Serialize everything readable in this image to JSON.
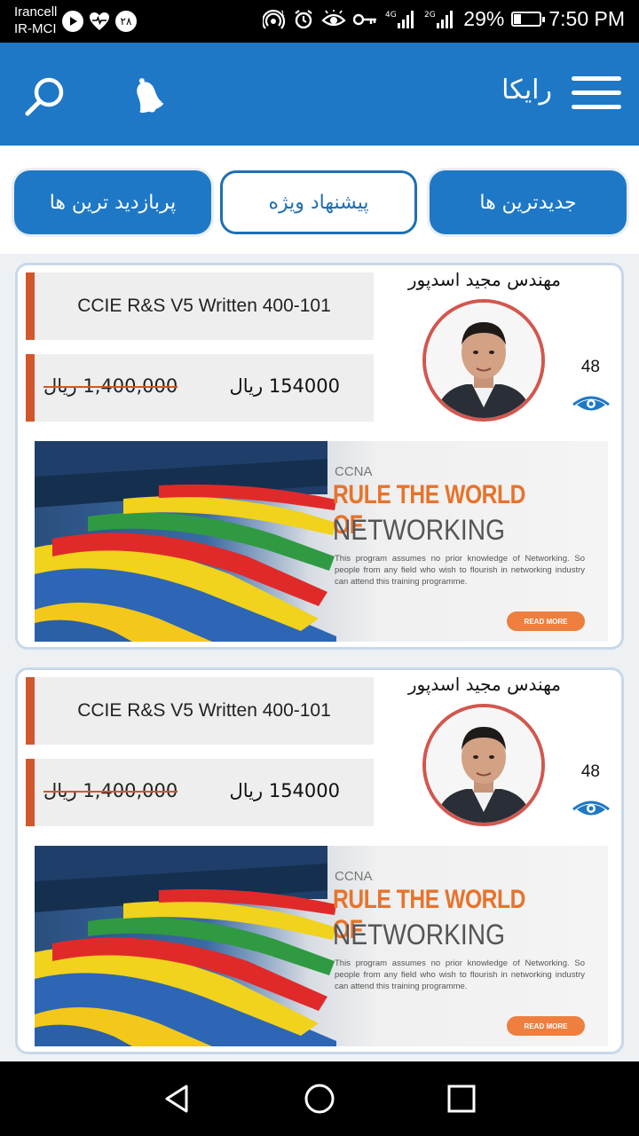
{
  "status_bar": {
    "carrier_line1": "Irancell",
    "carrier_line2": "IR-MCI",
    "notification_badge": "۲۸",
    "network_4g": "4G",
    "network_2g": "2G",
    "battery_percent": "29%",
    "battery_level": 0.29,
    "time": "7:50 PM"
  },
  "app_bar": {
    "title": "رایکا",
    "icons": [
      "menu-icon",
      "bell-icon",
      "search-icon"
    ]
  },
  "tabs": [
    {
      "label": "جدیدترین ها",
      "selected": false
    },
    {
      "label": "پیشنهاد ویژه",
      "selected": true
    },
    {
      "label": "پربازدید ترین ها",
      "selected": false
    }
  ],
  "courses": [
    {
      "title": "CCIE R&S V5 Written 400-101",
      "price": "154000 ریال",
      "old_price": "1,400,000 ریال",
      "instructor": "مهندس مجید اسدپور",
      "views": "48",
      "banner": {
        "tag": "CCNA",
        "headline": "RULE THE WORLD OF",
        "subheadline": "NETWORKING",
        "body": "This program assumes no prior knowledge of Networking. So people from any field who wish to flourish in networking industry can attend this training programme.",
        "button": "READ MORE"
      }
    },
    {
      "title": "CCIE R&S V5 Written 400-101",
      "price": "154000 ریال",
      "old_price": "1,400,000 ریال",
      "instructor": "مهندس مجید اسدپور",
      "views": "48",
      "banner": {
        "tag": "CCNA",
        "headline": "RULE THE WORLD OF",
        "subheadline": "NETWORKING",
        "body": "This program assumes no prior knowledge of Networking. So people from any field who wish to flourish in networking industry can attend this training programme.",
        "button": "READ MORE"
      }
    }
  ],
  "colors": {
    "primary": "#1e78c6",
    "accent_bar": "#d2572a",
    "avatar_ring": "#d2574e",
    "banner_orange": "#e8732a"
  },
  "nav_bar": [
    "back-icon",
    "home-icon",
    "recents-icon"
  ]
}
